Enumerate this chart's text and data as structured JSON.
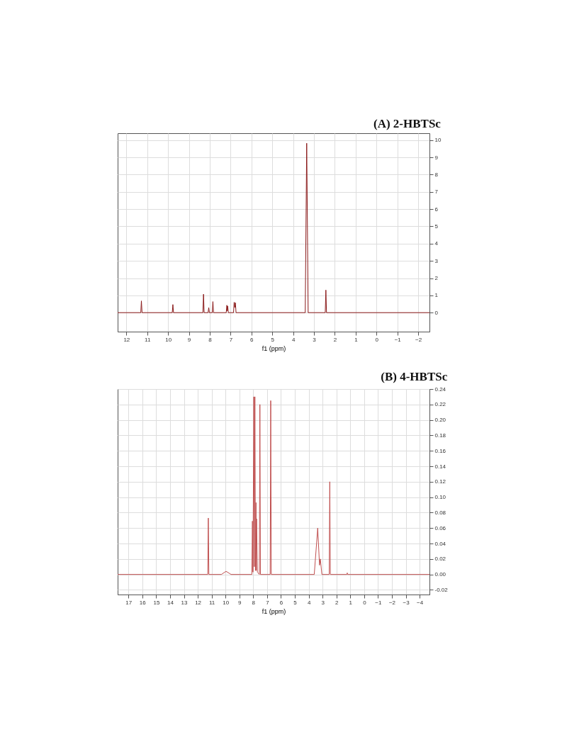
{
  "chart_data": [
    {
      "type": "line",
      "title": "(A) 2-HBTSc",
      "xlabel": "f1 (ppm)",
      "xlim": [
        12.42,
        -2.54
      ],
      "xticks": [
        12,
        11,
        10,
        9,
        8,
        7,
        6,
        5,
        4,
        3,
        2,
        1,
        0,
        -1,
        -2
      ],
      "ylim": [
        -1.1,
        10.4
      ],
      "yticks": [
        0,
        1,
        2,
        3,
        4,
        5,
        6,
        7,
        8,
        9,
        10
      ],
      "grid": true,
      "marker": "none",
      "line_style": "solid",
      "series": [
        {
          "color": "#8b1a1a",
          "x": [
            12.42,
            11.31,
            11.28,
            11.25,
            9.8,
            9.77,
            9.74,
            8.33,
            8.3,
            8.27,
            8.08,
            8.05,
            8.02,
            7.88,
            7.85,
            7.82,
            7.21,
            7.18,
            7.16,
            7.14,
            7.11,
            6.86,
            6.83,
            6.8,
            6.77,
            6.74,
            3.42,
            3.35,
            3.28,
            2.46,
            2.43,
            2.4,
            -2.54
          ],
          "values": [
            0,
            0,
            0.68,
            0,
            0,
            0.47,
            0,
            0,
            1.07,
            0,
            0,
            0.29,
            0,
            0,
            0.64,
            0,
            0,
            0.43,
            0.1,
            0.38,
            0,
            0,
            0.6,
            0.3,
            0.58,
            0,
            0,
            9.82,
            0,
            0,
            1.31,
            0,
            0
          ]
        }
      ]
    },
    {
      "type": "line",
      "title": "(B) 4-HBTSc",
      "xlabel": "f1 (ppm)",
      "xlim": [
        17.78,
        -4.71
      ],
      "xticks": [
        17,
        16,
        15,
        14,
        13,
        12,
        11,
        10,
        9,
        8,
        7,
        6,
        5,
        4,
        3,
        2,
        1,
        0,
        -1,
        -2,
        -3,
        -4
      ],
      "ylim": [
        -0.026,
        0.24
      ],
      "yticks": [
        {
          "value": -0.02,
          "label": "-0.02"
        },
        {
          "value": 0,
          "label": "0.00"
        },
        {
          "value": 0.02,
          "label": "0.02"
        },
        {
          "value": 0.04,
          "label": "0.04"
        },
        {
          "value": 0.06,
          "label": "0.06"
        },
        {
          "value": 0.08,
          "label": "0.08"
        },
        {
          "value": 0.1,
          "label": "0.10"
        },
        {
          "value": 0.12,
          "label": "0.12"
        },
        {
          "value": 0.14,
          "label": "0.14"
        },
        {
          "value": 0.16,
          "label": "0.16"
        },
        {
          "value": 0.18,
          "label": "0.18"
        },
        {
          "value": 0.2,
          "label": "0.20"
        },
        {
          "value": 0.22,
          "label": "0.22"
        },
        {
          "value": 0.24,
          "label": "0.24"
        }
      ],
      "grid": true,
      "marker": "none",
      "line_style": "solid",
      "series": [
        {
          "color": "#c05050",
          "x": [
            17.78,
            11.28,
            11.24,
            11.2,
            10.3,
            9.96,
            9.6,
            8.1,
            8.06,
            8.02,
            7.96,
            7.92,
            7.88,
            7.84,
            7.8,
            7.78,
            7.76,
            7.7,
            7.56,
            7.52,
            7.48,
            6.78,
            6.74,
            6.7,
            3.6,
            3.35,
            3.22,
            3.16,
            3.05,
            2.52,
            2.48,
            2.44,
            1.25,
            1.22,
            1.19,
            -4.71
          ],
          "values": [
            0,
            0,
            0.073,
            0,
            0,
            0.004,
            0,
            0,
            0.069,
            0.003,
            0.23,
            0.01,
            0.23,
            0.005,
            0.093,
            0.005,
            0.072,
            0.003,
            0,
            0.22,
            0,
            0,
            0.225,
            0,
            0,
            0.06,
            0.012,
            0.02,
            0,
            0,
            0.12,
            0,
            0,
            0.002,
            0,
            0
          ]
        }
      ]
    }
  ]
}
